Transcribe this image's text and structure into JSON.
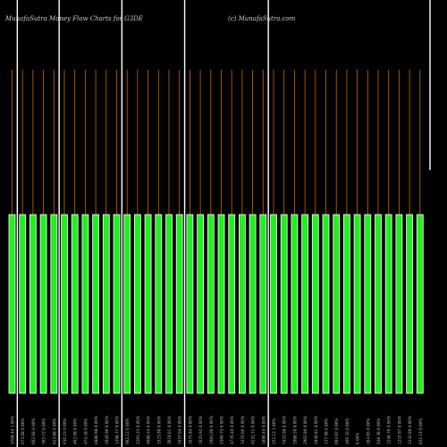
{
  "title": "MunafaSutra  Money Flow  Charts for G3DE",
  "site": "(c) MunafaSutra.com",
  "colors": {
    "background": "#000000",
    "bar_fill": "#22ee22",
    "bar_stroke": "#ffffff",
    "stick": "#cc6600",
    "divider": "#ffffff",
    "label": "#bbbbbb"
  },
  "chart_data": {
    "type": "bar",
    "title": "MunafaSutra  Money Flow  Charts for G3DE",
    "xlabel": "",
    "ylabel": "",
    "grid": false,
    "legend": "none",
    "categories": [
      "3708.44 1.00%",
      "673.68 0.00%",
      "602.68 0.00%",
      "365.72 0.00%",
      "623.88 0.00%",
      "636.23 0.00%",
      "462.08 0.00%",
      "474.28 0.00%",
      "4888.98 0.00%",
      "2044.90 0.00%",
      "1398.77 0.00%",
      "962.12 0.00%",
      "2265.23 0.00%",
      "4088.54 0.00%",
      "3323.80 0.00%",
      "3018.01 0.00%",
      "1657.04 0.00%",
      "1675.84 0.00%",
      "1623.92 0.00%",
      "1981.06 0.00%",
      "2360.75 0.00%",
      "4770.40 0.00%",
      "3376.00 0.00%",
      "4231.71 0.00%",
      "1880.44 0.00%",
      "252.12 1.00%",
      "7423.98 0.00%",
      "2988.59 0.00%",
      "2903.89 0.00%",
      "2840.81 0.00%",
      "137.98 0.00%",
      "664.97 0.00%",
      "406.33 0.00%",
      "0.00%",
      "204.85 0.00%",
      "248.38 0.00%",
      "1246.70 0.00%",
      "1210.97 0.00%",
      "2232.89 0.00%",
      "832.14 0.00%"
    ],
    "flow_values": [
      1,
      1,
      1,
      1,
      1,
      1,
      1,
      1,
      1,
      1,
      1,
      1,
      1,
      1,
      1,
      1,
      1,
      1,
      1,
      1,
      1,
      1,
      1,
      1,
      1,
      1,
      1,
      1,
      1,
      1,
      1,
      1,
      1,
      1,
      1,
      1,
      1,
      1,
      1,
      1
    ],
    "stick_values": [
      1,
      1,
      1,
      1,
      1,
      1,
      1,
      1,
      1,
      1,
      1,
      1,
      1,
      1,
      1,
      1,
      1,
      1,
      1,
      1,
      1,
      1,
      1,
      1,
      1,
      1,
      1,
      1,
      1,
      1,
      1,
      1,
      1,
      1,
      1,
      1,
      1,
      1,
      1,
      1
    ],
    "last_marker": 0.55,
    "dividers_after_index": [
      0,
      4,
      10,
      16,
      24
    ]
  }
}
